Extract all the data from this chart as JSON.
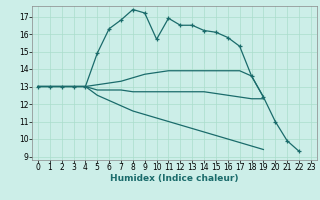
{
  "background_color": "#cceee8",
  "grid_color": "#aaddcc",
  "line_color": "#1a6b6b",
  "xlabel": "Humidex (Indice chaleur)",
  "xlabel_fontsize": 6.5,
  "tick_fontsize": 5.5,
  "xlim": [
    -0.5,
    23.5
  ],
  "ylim": [
    8.8,
    17.6
  ],
  "yticks": [
    9,
    10,
    11,
    12,
    13,
    14,
    15,
    16,
    17
  ],
  "xticks": [
    0,
    1,
    2,
    3,
    4,
    5,
    6,
    7,
    8,
    9,
    10,
    11,
    12,
    13,
    14,
    15,
    16,
    17,
    18,
    19,
    20,
    21,
    22,
    23
  ],
  "series": [
    [
      13.0,
      13.0,
      13.0,
      13.0,
      13.0,
      14.9,
      16.3,
      16.8,
      17.4,
      17.2,
      15.7,
      16.9,
      16.5,
      16.5,
      16.2,
      16.1,
      15.8,
      15.3,
      13.6,
      12.4,
      11.0,
      9.9,
      9.3,
      null
    ],
    [
      13.0,
      13.0,
      13.0,
      13.0,
      13.0,
      13.1,
      13.2,
      13.3,
      13.5,
      13.7,
      13.8,
      13.9,
      13.9,
      13.9,
      13.9,
      13.9,
      13.9,
      13.9,
      13.6,
      12.4,
      null,
      null,
      null,
      null
    ],
    [
      13.0,
      13.0,
      13.0,
      13.0,
      13.0,
      12.8,
      12.8,
      12.8,
      12.7,
      12.7,
      12.7,
      12.7,
      12.7,
      12.7,
      12.7,
      12.6,
      12.5,
      12.4,
      12.3,
      12.3,
      null,
      null,
      null,
      null
    ],
    [
      13.0,
      13.0,
      13.0,
      13.0,
      13.0,
      12.5,
      12.2,
      11.9,
      11.6,
      11.4,
      11.2,
      11.0,
      10.8,
      10.6,
      10.4,
      10.2,
      10.0,
      9.8,
      9.6,
      9.4,
      null,
      null,
      null,
      null
    ]
  ]
}
